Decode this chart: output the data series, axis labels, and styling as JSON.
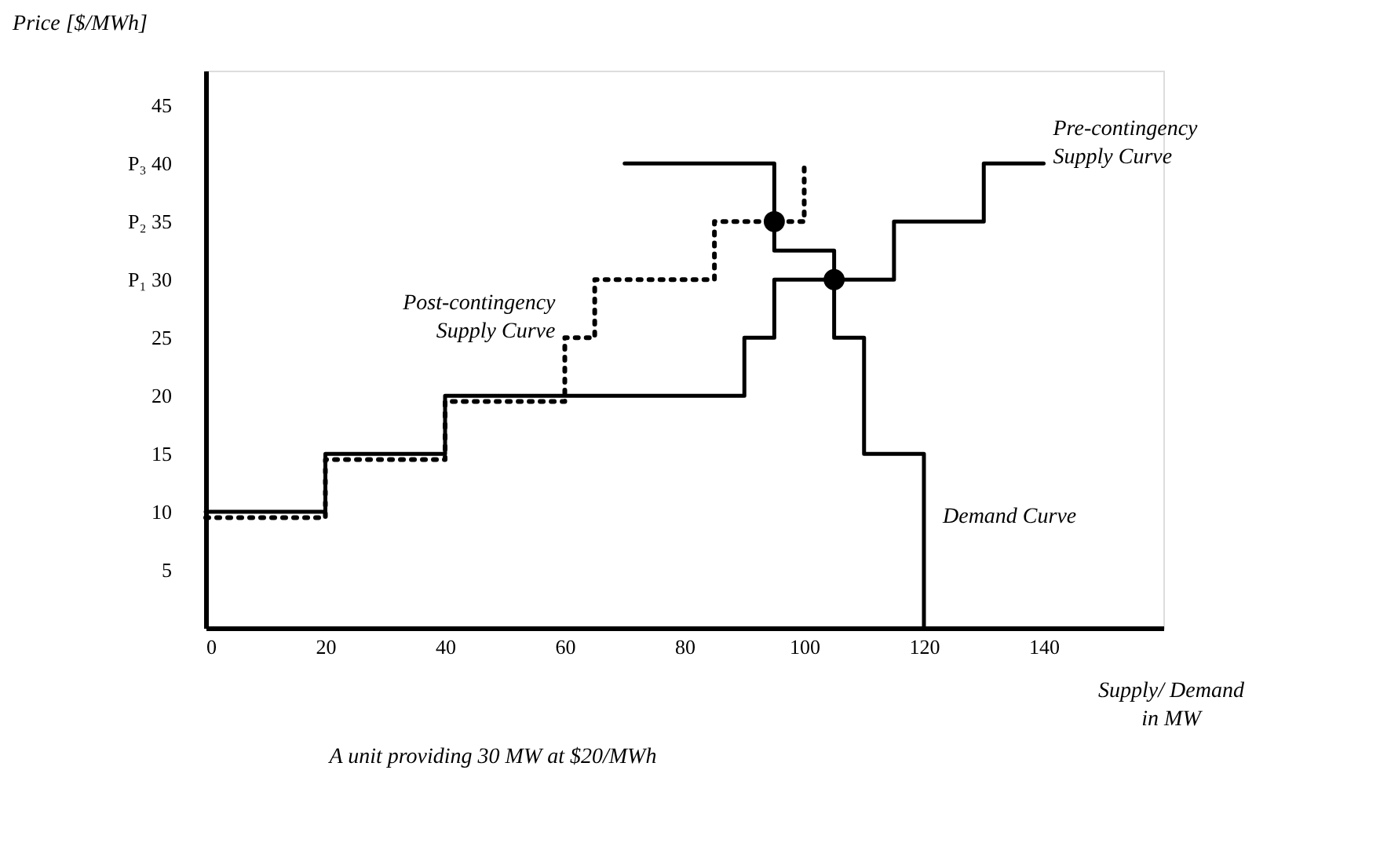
{
  "chart_data": {
    "type": "step",
    "xlabel": "Supply/ Demand\nin MW",
    "ylabel": "Price [$/MWh]",
    "series": [
      {
        "name": "Pre-contingency\nSupply Curve",
        "color": "#000000",
        "line_style": "solid",
        "x": [
          0,
          20,
          40,
          90,
          95,
          115,
          130,
          140
        ],
        "values": [
          10,
          15,
          20,
          25,
          30,
          35,
          40,
          40
        ]
      },
      {
        "name": "Post-contingency\nSupply Curve",
        "color": "#000000",
        "line_style": "dotted",
        "x": [
          0,
          20,
          40,
          60,
          65,
          85,
          100
        ],
        "values": [
          9.5,
          14.5,
          19.5,
          25,
          30,
          35,
          40
        ]
      },
      {
        "name": "Demand Curve",
        "color": "#000000",
        "line_style": "solid",
        "x": [
          70,
          95,
          105,
          110,
          120
        ],
        "values": [
          40,
          32.5,
          25,
          15,
          0
        ]
      },
      {
        "type": "scatter",
        "color": "#000000",
        "marker": "circle",
        "x": [
          95,
          105
        ],
        "values": [
          35,
          30
        ]
      }
    ],
    "xlim": [
      0,
      160
    ],
    "ylim": [
      0,
      48
    ],
    "xticks": [
      0,
      20,
      40,
      60,
      80,
      100,
      120,
      140
    ],
    "yticks": [
      5,
      10,
      15,
      20,
      25,
      {
        "value": 30,
        "label": "P₁     30"
      },
      {
        "value": 35,
        "label": "P₂     35"
      },
      {
        "value": 40,
        "label": "P₃     40"
      },
      45
    ],
    "grid": false,
    "annotations": [
      "A unit providing 30 MW at $20/MWh"
    ]
  }
}
